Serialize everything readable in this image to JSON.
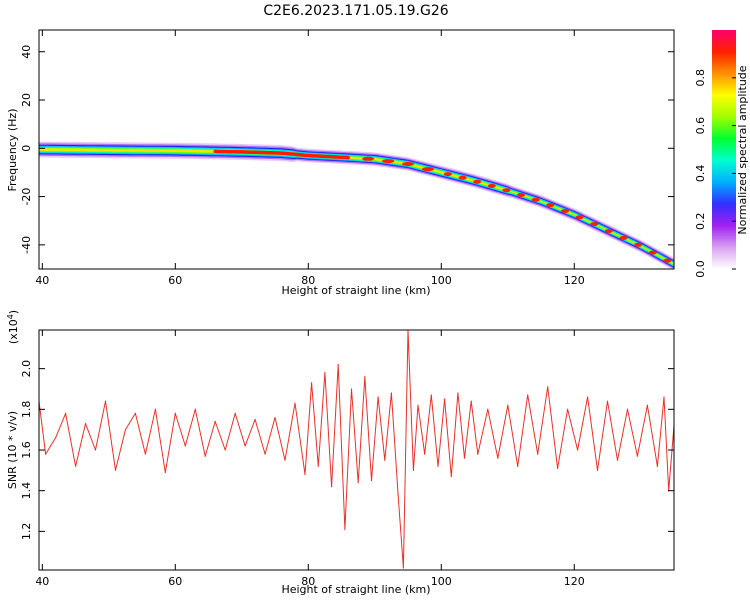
{
  "title": "C2E6.2023.171.05.19.G26",
  "chart_data": [
    {
      "type": "heatmap",
      "title": "C2E6.2023.171.05.19.G26",
      "xlabel": "Height of straight line (km)",
      "ylabel": "Frequency (Hz)",
      "xlim": [
        39.5,
        135
      ],
      "ylim": [
        -50,
        49
      ],
      "xticks": [
        40,
        60,
        80,
        100,
        120
      ],
      "yticks": [
        -40,
        -20,
        0,
        20,
        40
      ],
      "colorbar": {
        "label": "Normalized spectral amplitude",
        "range": [
          0,
          1
        ],
        "ticks": [
          "0.0",
          "0.2",
          "0.4",
          "0.6",
          "0.8"
        ],
        "colors": [
          "#ffffff",
          "#d7a0f0",
          "#a020f0",
          "#3030ff",
          "#00b0ff",
          "#00ffd0",
          "#00ff30",
          "#a0ff00",
          "#ffff00",
          "#ff9000",
          "#ff2000",
          "#ff0070"
        ]
      },
      "ridge": {
        "x": [
          39.5,
          50,
          60,
          70,
          76,
          80,
          85,
          90,
          95,
          100,
          105,
          110,
          115,
          120,
          125,
          130,
          135
        ],
        "y": [
          -0.5,
          -0.8,
          -1.0,
          -1.5,
          -2.0,
          -3.0,
          -3.7,
          -4.5,
          -6.5,
          -10.0,
          -13.5,
          -17.5,
          -22.0,
          -27.5,
          -34.0,
          -40.5,
          -48.0
        ]
      }
    },
    {
      "type": "line",
      "xlabel": "Height of straight line (km)",
      "ylabel": "SNR (10 * v/v)",
      "scale_label": "(x10",
      "scale_exp": "4",
      "scale_close": ")",
      "xlim": [
        39.5,
        135
      ],
      "ylim": [
        1.01,
        2.19
      ],
      "xticks": [
        40,
        60,
        80,
        100,
        120
      ],
      "yticks": [
        1.2,
        1.4,
        1.6,
        1.8,
        2.0
      ],
      "ytick_labels": [
        "1.2",
        "1.4",
        "1.6",
        "1.8",
        "2.0"
      ],
      "baseline": 1.65,
      "series": [
        {
          "color": "#e8302a",
          "x": [
            39.5,
            40.5,
            42,
            43.5,
            45,
            46.5,
            48,
            49.5,
            51,
            52.5,
            54,
            55.5,
            57,
            58.5,
            60,
            61.5,
            63,
            64.5,
            66,
            67.5,
            69,
            70.5,
            72,
            73.5,
            75,
            76.5,
            78,
            79.5,
            80.5,
            81.5,
            82.5,
            83.5,
            84.5,
            85.5,
            86.5,
            87.5,
            88.5,
            89.5,
            90.5,
            91.5,
            92.5,
            93.5,
            94.3,
            95.0,
            95.8,
            96.5,
            97.5,
            98.5,
            99.5,
            100.5,
            101.5,
            102.5,
            103.5,
            104.5,
            105.5,
            107,
            108.5,
            110,
            111.5,
            113,
            114.5,
            116,
            117.5,
            119,
            120.5,
            122,
            123.5,
            125,
            126.5,
            128,
            129.5,
            131,
            132.5,
            133.5,
            134.2,
            135
          ],
          "values": [
            1.84,
            1.58,
            1.66,
            1.78,
            1.52,
            1.73,
            1.6,
            1.84,
            1.5,
            1.7,
            1.78,
            1.58,
            1.8,
            1.49,
            1.78,
            1.62,
            1.8,
            1.57,
            1.74,
            1.6,
            1.78,
            1.62,
            1.75,
            1.58,
            1.76,
            1.55,
            1.83,
            1.48,
            1.93,
            1.52,
            1.98,
            1.42,
            2.02,
            1.21,
            1.9,
            1.44,
            1.96,
            1.45,
            1.86,
            1.55,
            1.88,
            1.38,
            1.02,
            2.19,
            1.5,
            1.82,
            1.58,
            1.87,
            1.52,
            1.85,
            1.47,
            1.88,
            1.56,
            1.84,
            1.58,
            1.8,
            1.56,
            1.82,
            1.52,
            1.87,
            1.58,
            1.91,
            1.51,
            1.8,
            1.6,
            1.86,
            1.5,
            1.84,
            1.55,
            1.8,
            1.57,
            1.82,
            1.52,
            1.86,
            1.4,
            1.72
          ]
        }
      ]
    }
  ]
}
